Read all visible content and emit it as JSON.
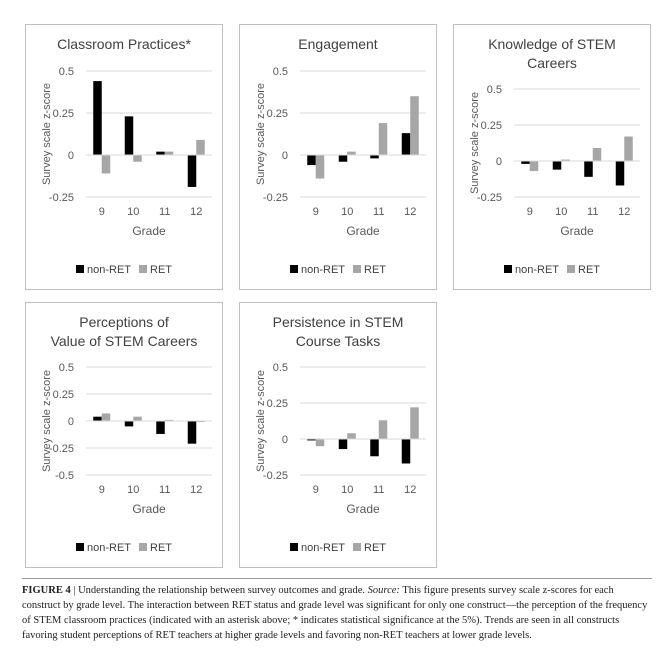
{
  "colors": {
    "non_ret": "#000000",
    "ret": "#a6a6a6",
    "axis": "#d9d9d9",
    "text": "#595959"
  },
  "chart_data": [
    {
      "type": "bar",
      "title_lines": [
        "Classroom Practices*"
      ],
      "ylabel": "Survey scale z-score",
      "xlabel": "Grade",
      "categories": [
        "9",
        "10",
        "11",
        "12"
      ],
      "ylim": [
        -0.25,
        0.5
      ],
      "yticks": [
        "0.5",
        "0.25",
        "0",
        "-0.25"
      ],
      "series": [
        {
          "name": "non-RET",
          "values": [
            0.44,
            0.23,
            0.02,
            -0.19
          ]
        },
        {
          "name": "RET",
          "values": [
            -0.11,
            -0.04,
            0.02,
            0.09
          ]
        }
      ],
      "legend_order": [
        0,
        1
      ]
    },
    {
      "type": "bar",
      "title_lines": [
        "Engagement"
      ],
      "ylabel": "Survey scale z-score",
      "xlabel": "Grade",
      "categories": [
        "9",
        "10",
        "11",
        "12"
      ],
      "ylim": [
        -0.25,
        0.5
      ],
      "yticks": [
        "0.5",
        "0.25",
        "0",
        "-0.25"
      ],
      "series": [
        {
          "name": "non-RET",
          "values": [
            -0.06,
            -0.04,
            -0.02,
            0.13
          ]
        },
        {
          "name": "RET",
          "values": [
            -0.14,
            0.02,
            0.19,
            0.35
          ]
        }
      ],
      "legend_order": [
        0,
        1
      ]
    },
    {
      "type": "bar",
      "title_lines": [
        "Knowledge of STEM",
        "Careers"
      ],
      "ylabel": "Survey scale z-score",
      "xlabel": "Grade",
      "categories": [
        "9",
        "10",
        "11",
        "12"
      ],
      "ylim": [
        -0.25,
        0.5
      ],
      "yticks": [
        "0.5",
        "0.25",
        "0",
        "-0.25"
      ],
      "series": [
        {
          "name": "non-RET",
          "values": [
            -0.02,
            -0.06,
            -0.11,
            -0.17
          ]
        },
        {
          "name": "RET",
          "values": [
            -0.07,
            0.01,
            0.09,
            0.17
          ]
        }
      ],
      "legend_order": [
        0,
        1
      ]
    },
    {
      "type": "bar",
      "title_lines": [
        "Perceptions of",
        "Value of STEM Careers"
      ],
      "ylabel": "Survey scale z-score",
      "xlabel": "Grade",
      "categories": [
        "9",
        "10",
        "11",
        "12"
      ],
      "ylim": [
        -0.5,
        0.5
      ],
      "yticks": [
        "0.5",
        "0.25",
        "0",
        "-0.25",
        "-0.5"
      ],
      "series": [
        {
          "name": "non-RET",
          "values": [
            0.04,
            -0.05,
            -0.12,
            -0.21
          ]
        },
        {
          "name": "RET",
          "values": [
            0.07,
            0.04,
            0.01,
            -0.01
          ]
        }
      ],
      "legend_order": [
        0,
        1
      ]
    },
    {
      "type": "bar",
      "title_lines": [
        "Persistence in STEM",
        "Course Tasks"
      ],
      "ylabel": "Survey scale z-score",
      "xlabel": "Grade",
      "categories": [
        "9",
        "10",
        "11",
        "12"
      ],
      "ylim": [
        -0.25,
        0.5
      ],
      "yticks": [
        "0.5",
        "0.25",
        "0",
        "-0.25"
      ],
      "series": [
        {
          "name": "non-RET",
          "values": [
            -0.01,
            -0.07,
            -0.12,
            -0.17
          ]
        },
        {
          "name": "RET",
          "values": [
            -0.05,
            0.04,
            0.13,
            0.22
          ]
        }
      ],
      "legend_order": [
        0,
        1
      ]
    }
  ],
  "caption": {
    "label": "FIGURE 4",
    "separator": "|",
    "lead": "Understanding the relationship between survey outcomes and grade.",
    "source_label": "Source:",
    "text": "This figure presents survey scale z-scores for each construct by grade level. The interaction between RET status and grade level was significant for only one construct—the perception of the frequency of STEM classroom practices (indicated with an asterisk above; * indicates statistical significance at the 5%). Trends are seen in all constructs favoring student perceptions of RET teachers at higher grade levels and favoring non-RET teachers at lower grade levels."
  }
}
